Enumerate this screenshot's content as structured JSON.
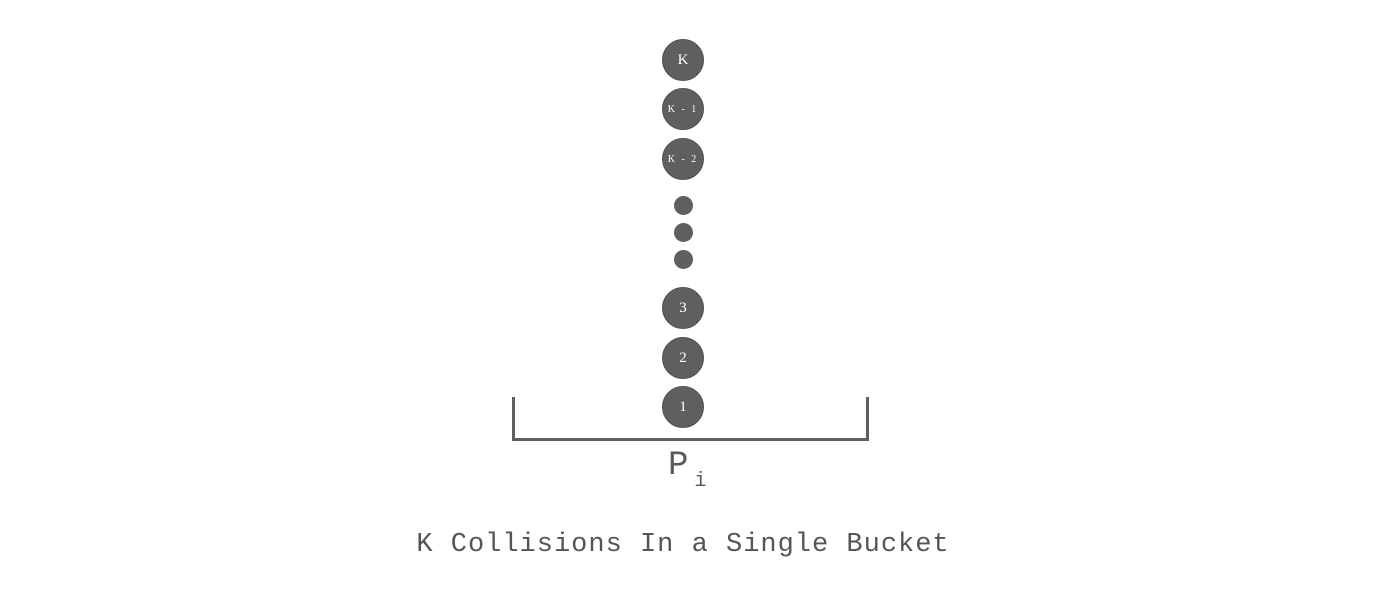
{
  "stack": {
    "top_items": [
      {
        "label": "K"
      },
      {
        "label": "K - 1"
      },
      {
        "label": "K - 2"
      }
    ],
    "ellipsis_count": 3,
    "bottom_items": [
      {
        "label": "3"
      },
      {
        "label": "2"
      },
      {
        "label": "1"
      }
    ]
  },
  "bucket": {
    "label_main": "P",
    "label_sub": "i"
  },
  "caption": "K Collisions In a Single Bucket",
  "colors": {
    "ball": "#5f5f5f",
    "text": "#5a5a5a",
    "background": "#ffffff"
  }
}
